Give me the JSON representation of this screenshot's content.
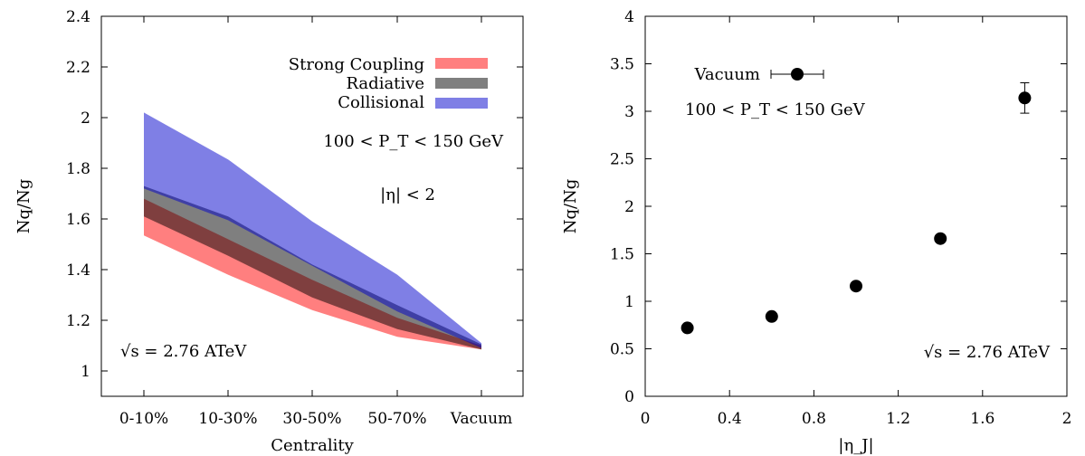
{
  "colors": {
    "strong_coupling": "#ff0000",
    "radiative": "#000000",
    "collisional": "#0000cc",
    "band_opacity": 0.5
  },
  "chart_data": [
    {
      "type": "area",
      "xlabel": "Centrality",
      "ylabel": "Nq/Ng",
      "categories": [
        "0-10%",
        "10-30%",
        "30-50%",
        "50-70%",
        "Vacuum"
      ],
      "ylim": [
        0.9,
        2.4
      ],
      "yticks": [
        1,
        1.2,
        1.4,
        1.6,
        1.8,
        2,
        2.2,
        2.4
      ],
      "ytick_labels": [
        "1",
        "1.2",
        "1.4",
        "1.6",
        "1.8",
        "2",
        "2.2",
        "2.4"
      ],
      "legend_position": "top-right",
      "series": [
        {
          "name": "Strong Coupling",
          "color_key": "strong_coupling",
          "lower": [
            1.535,
            1.38,
            1.24,
            1.135,
            1.085
          ],
          "upper": [
            1.68,
            1.52,
            1.36,
            1.21,
            1.1
          ]
        },
        {
          "name": "Radiative",
          "color_key": "radiative",
          "lower": [
            1.61,
            1.455,
            1.29,
            1.165,
            1.085
          ],
          "upper": [
            1.73,
            1.61,
            1.42,
            1.26,
            1.105
          ]
        },
        {
          "name": "Collisional",
          "color_key": "collisional",
          "lower": [
            1.72,
            1.595,
            1.415,
            1.235,
            1.09
          ],
          "upper": [
            2.02,
            1.835,
            1.59,
            1.38,
            1.11
          ]
        }
      ],
      "annotations": {
        "pt_range": "100 < P_T < 150 GeV",
        "eta_cut": "|η| < 2",
        "energy": "√s = 2.76 ATeV"
      }
    },
    {
      "type": "scatter",
      "xlabel": "|η_J|",
      "ylabel": "Nq/Ng",
      "xlim": [
        0,
        2
      ],
      "ylim": [
        0,
        4
      ],
      "xticks": [
        0,
        0.4,
        0.8,
        1.2,
        1.6,
        2
      ],
      "xtick_labels": [
        "0",
        "0.4",
        "0.8",
        "1.2",
        "1.6",
        "2"
      ],
      "yticks": [
        0,
        0.5,
        1,
        1.5,
        2,
        2.5,
        3,
        3.5,
        4
      ],
      "ytick_labels": [
        "0",
        "0.5",
        "1",
        "1.5",
        "2",
        "2.5",
        "3",
        "3.5",
        "4"
      ],
      "points": [
        {
          "x": 0.2,
          "y": 0.72,
          "yerr": 0.0
        },
        {
          "x": 0.6,
          "y": 0.84,
          "yerr": 0.0
        },
        {
          "x": 1.0,
          "y": 1.16,
          "yerr": 0.0
        },
        {
          "x": 1.4,
          "y": 1.66,
          "yerr": 0.0
        },
        {
          "x": 1.8,
          "y": 3.14,
          "yerr": 0.16
        }
      ],
      "legend": {
        "label": "Vacuum"
      },
      "annotations": {
        "pt_range": "100 < P_T < 150 GeV",
        "energy": "√s = 2.76 ATeV"
      }
    }
  ]
}
